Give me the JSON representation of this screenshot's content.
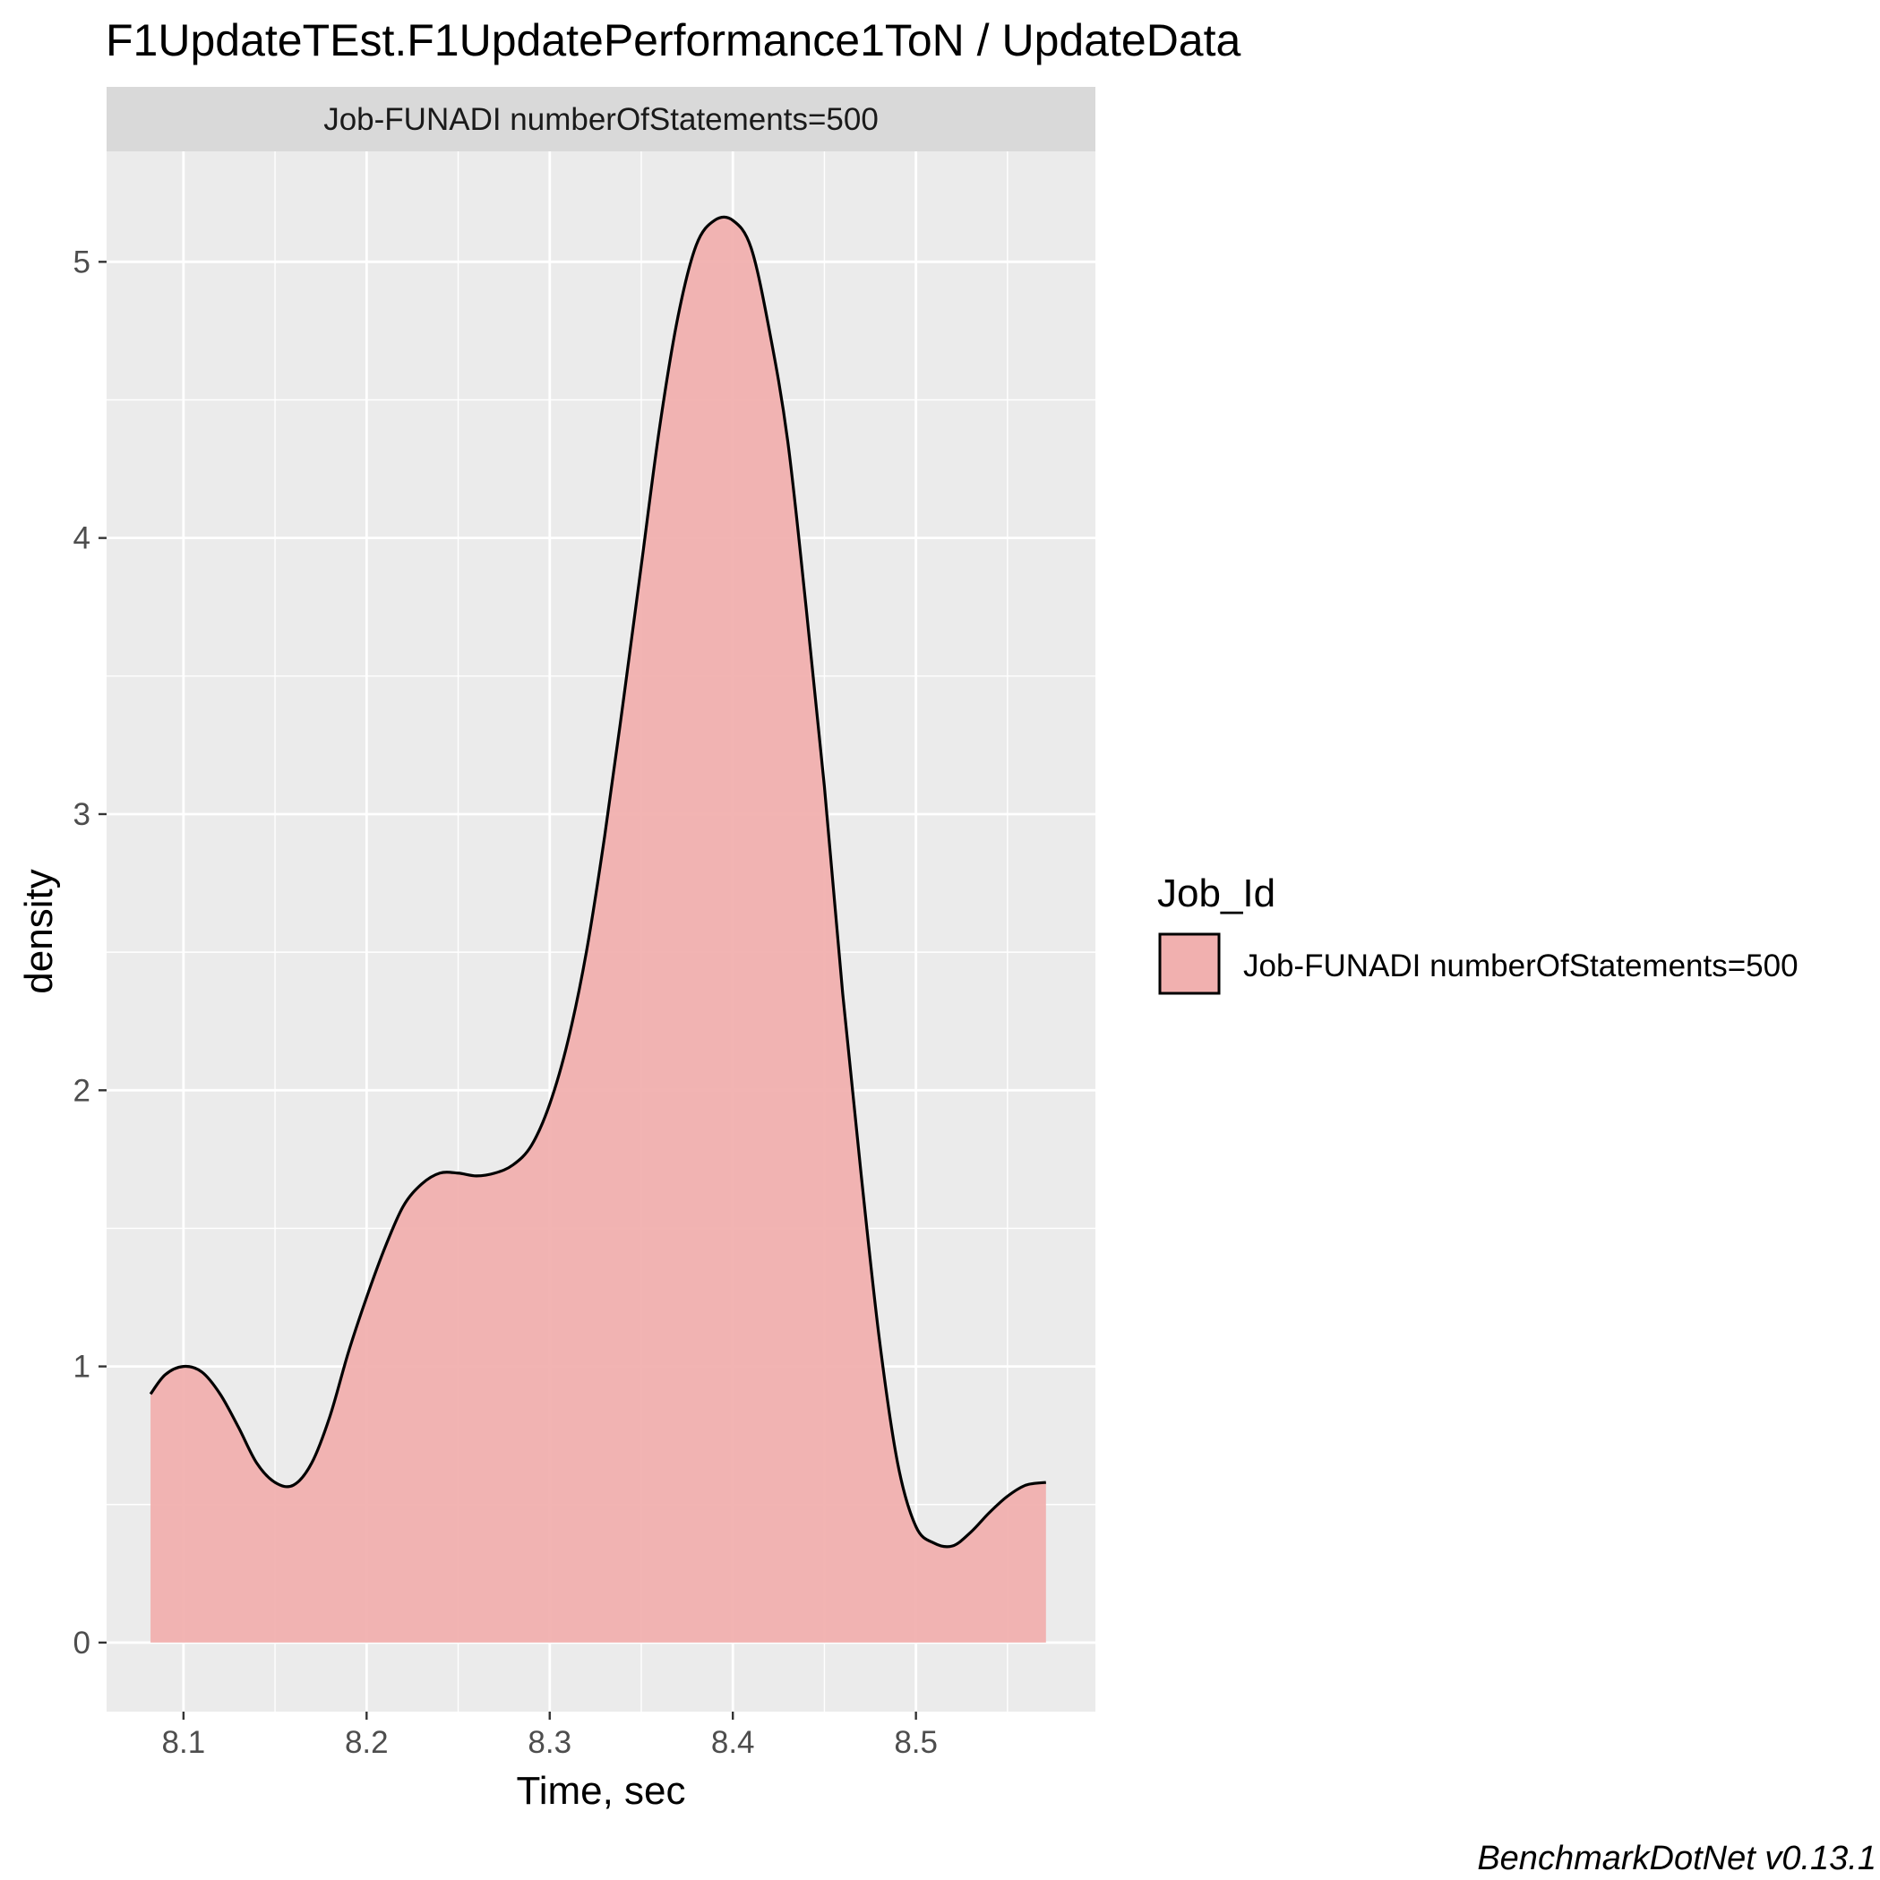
{
  "chart_data": {
    "type": "area",
    "title": "F1UpdateTEst.F1UpdatePerformance1ToN / UpdateData",
    "facet_label": "Job-FUNADI numberOfStatements=500",
    "xlabel": "Time, sec",
    "ylabel": "density",
    "xlim": [
      8.058,
      8.598
    ],
    "ylim": [
      -0.25,
      5.4
    ],
    "x_ticks": [
      8.1,
      8.2,
      8.3,
      8.4,
      8.5
    ],
    "x_tick_labels": [
      "8.1",
      "8.2",
      "8.3",
      "8.4",
      "8.5"
    ],
    "y_ticks": [
      0,
      1,
      2,
      3,
      4,
      5
    ],
    "y_tick_labels": [
      "0",
      "1",
      "2",
      "3",
      "4",
      "5"
    ],
    "grid": true,
    "legend": {
      "title": "Job_Id",
      "position": "right",
      "entries": [
        "Job-FUNADI numberOfStatements=500"
      ]
    },
    "caption": "BenchmarkDotNet v0.13.1",
    "series": [
      {
        "name": "Job-FUNADI numberOfStatements=500",
        "fill_color": "#f1b0af",
        "line_color": "#000000",
        "x": [
          8.082,
          8.09,
          8.1,
          8.11,
          8.12,
          8.13,
          8.14,
          8.15,
          8.16,
          8.17,
          8.18,
          8.19,
          8.2,
          8.21,
          8.22,
          8.23,
          8.24,
          8.25,
          8.26,
          8.27,
          8.28,
          8.29,
          8.3,
          8.31,
          8.32,
          8.33,
          8.34,
          8.35,
          8.36,
          8.37,
          8.38,
          8.39,
          8.4,
          8.41,
          8.42,
          8.43,
          8.44,
          8.45,
          8.46,
          8.47,
          8.48,
          8.49,
          8.5,
          8.51,
          8.52,
          8.53,
          8.54,
          8.55,
          8.56,
          8.571
        ],
        "y": [
          0.9,
          0.97,
          1.0,
          0.98,
          0.9,
          0.78,
          0.65,
          0.58,
          0.57,
          0.65,
          0.82,
          1.05,
          1.25,
          1.43,
          1.58,
          1.66,
          1.7,
          1.7,
          1.69,
          1.7,
          1.73,
          1.8,
          1.95,
          2.18,
          2.5,
          2.92,
          3.4,
          3.9,
          4.4,
          4.8,
          5.06,
          5.15,
          5.15,
          5.05,
          4.75,
          4.35,
          3.75,
          3.1,
          2.35,
          1.7,
          1.1,
          0.65,
          0.42,
          0.36,
          0.35,
          0.4,
          0.47,
          0.53,
          0.57,
          0.58
        ]
      }
    ]
  }
}
